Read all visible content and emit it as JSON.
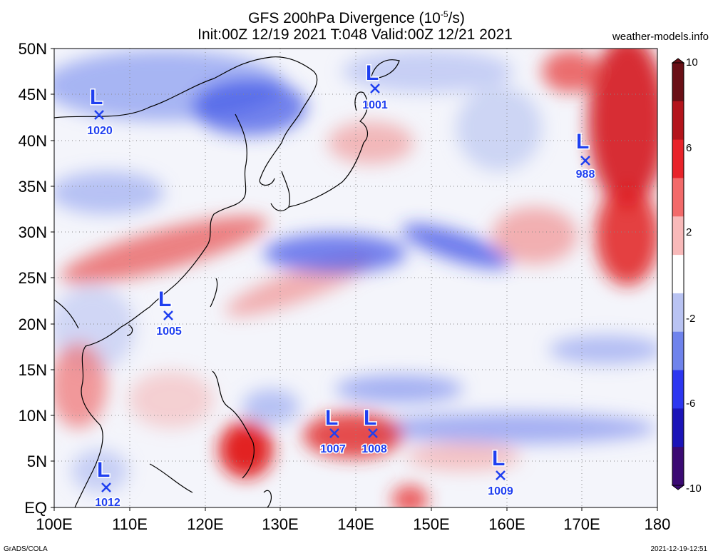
{
  "header": {
    "title_prefix": "GFS 200hPa Divergence (10",
    "title_exp": "-5",
    "title_suffix": "/s)",
    "subtitle": "Init:00Z 12/19 2021 T:048 Valid:00Z 12/21 2021",
    "site": "weather-models.info"
  },
  "map": {
    "lat_labels": [
      "50N",
      "45N",
      "40N",
      "35N",
      "30N",
      "25N",
      "20N",
      "15N",
      "10N",
      "5N",
      "EQ"
    ],
    "lon_labels": [
      "100E",
      "110E",
      "120E",
      "130E",
      "140E",
      "150E",
      "160E",
      "170E",
      "180"
    ]
  },
  "lows": [
    {
      "letter": "L",
      "pressure": "1020"
    },
    {
      "letter": "L",
      "pressure": "1001"
    },
    {
      "letter": "L",
      "pressure": "988"
    },
    {
      "letter": "L",
      "pressure": "1005"
    },
    {
      "letter": "L",
      "pressure": "1007"
    },
    {
      "letter": "L",
      "pressure": "1008"
    },
    {
      "letter": "L",
      "pressure": "1009"
    },
    {
      "letter": "L",
      "pressure": "1012"
    }
  ],
  "colorbar": {
    "labels": [
      "10",
      "6",
      "2",
      "-2",
      "-6",
      "-10"
    ],
    "colors": [
      "#6a0f16",
      "#b3141c",
      "#e8232a",
      "#f26a6a",
      "#f8b9b9",
      "#ffffff",
      "#b9c3f2",
      "#6f83ec",
      "#2c36f0",
      "#1b14b8",
      "#3b0a73"
    ]
  },
  "footer": {
    "left": "GrADS/COLA",
    "right": "2021-12-19-12:51"
  }
}
